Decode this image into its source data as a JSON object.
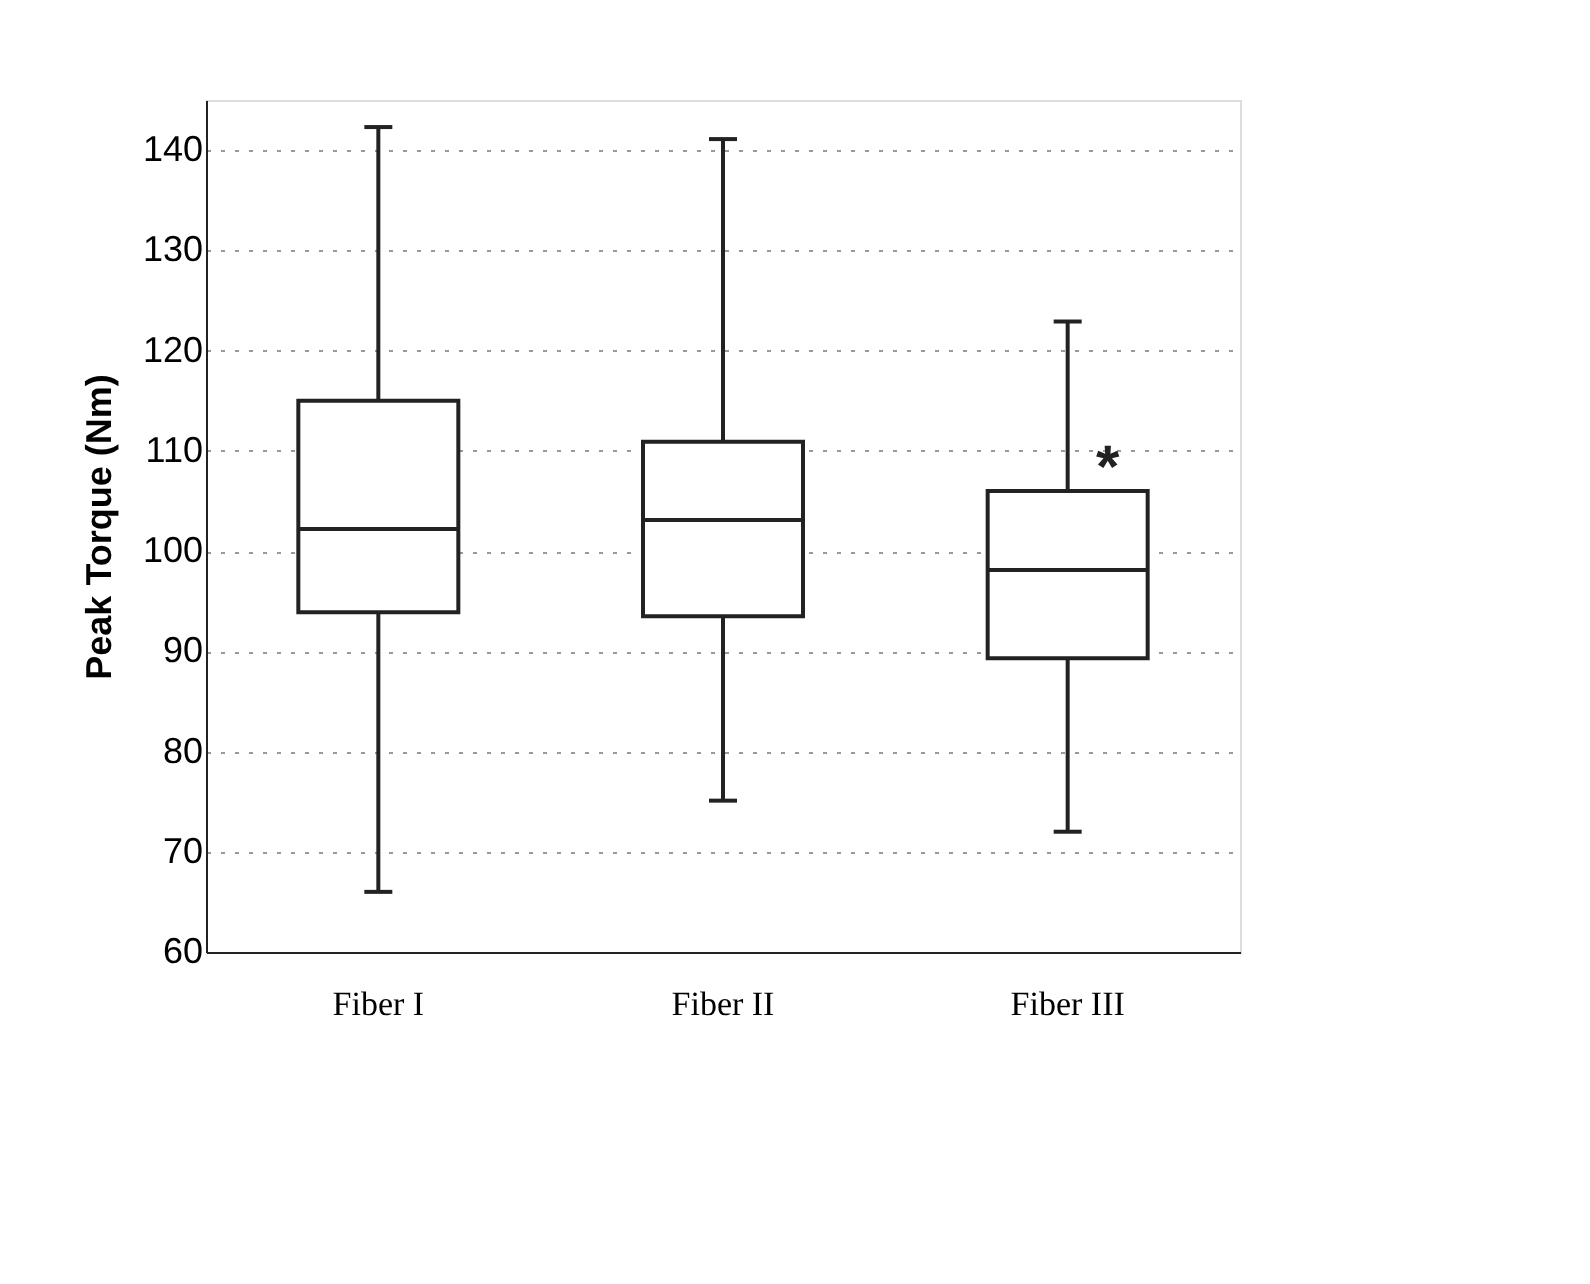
{
  "chart_data": {
    "type": "box",
    "ylabel": "Peak Torque (Nm)",
    "categories": [
      "Fiber I",
      "Fiber II",
      "Fiber III"
    ],
    "boxes": [
      {
        "low": 66,
        "q1": 93.9,
        "median": 102.2,
        "q3": 115,
        "high": 142.3
      },
      {
        "low": 75.1,
        "q1": 93.5,
        "median": 103.1,
        "q3": 110.9,
        "high": 141.1
      },
      {
        "low": 72,
        "q1": 89.3,
        "median": 98.1,
        "q3": 106,
        "high": 122.9
      }
    ],
    "color": "#ffffff",
    "ylim": [
      60,
      145
    ],
    "yticks": [
      60,
      70,
      80,
      90,
      100,
      110,
      120,
      130,
      140
    ],
    "grid": "y",
    "annotations": [
      {
        "text": "*",
        "x": "Fiber III",
        "y": 106
      }
    ]
  }
}
